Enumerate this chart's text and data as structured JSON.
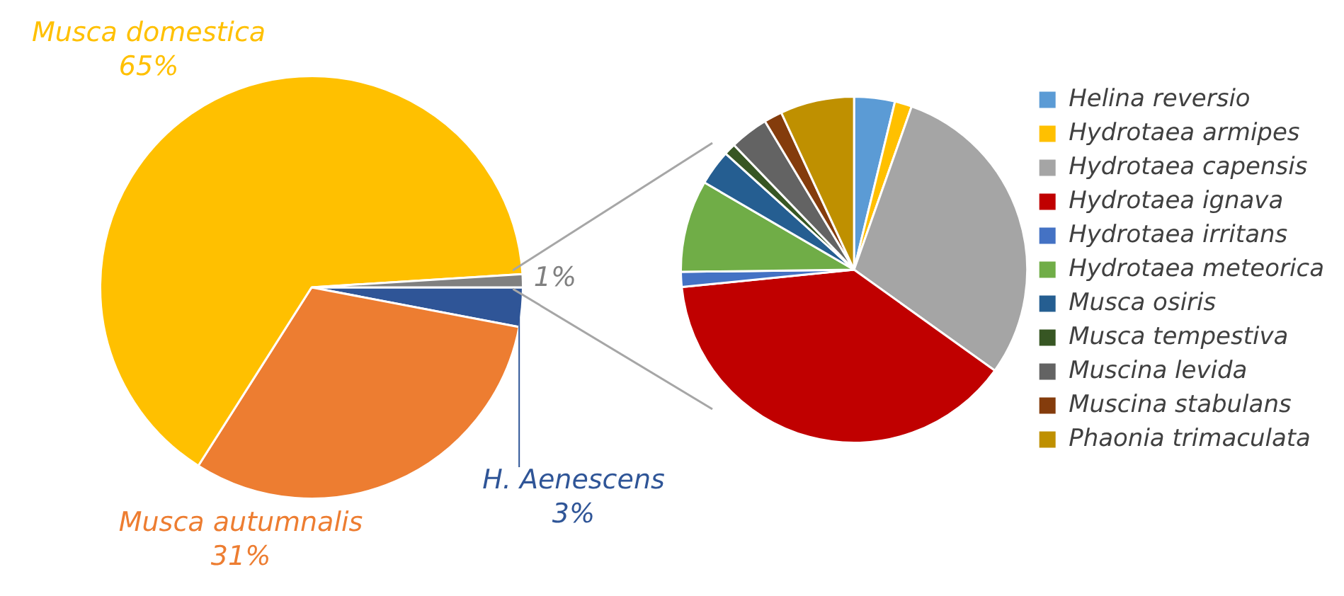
{
  "chart_data": [
    {
      "type": "pie",
      "categories": [
        "H. Aenescens",
        "Musca autumnalis",
        "Musca domestica",
        null
      ],
      "values": [
        3,
        31,
        65,
        1
      ],
      "colors": [
        "#2f5597",
        "#ed7d31",
        "#ffc000",
        "#808080"
      ],
      "value_labels": [
        "3%",
        "31%",
        "65%",
        "1%"
      ]
    },
    {
      "type": "pie",
      "categories": [
        "Helina reversio",
        "Hydrotaea armipes",
        "Hydrotaea capensis",
        "Hydrotaea ignava",
        "Hydrotaea irritans",
        "Hydrotaea meteorica",
        "Musca osiris",
        "Musca tempestiva",
        "Muscina levida",
        "Muscina stabulans",
        "Phaonia trimaculata"
      ],
      "values": [
        3.8,
        1.6,
        29.5,
        38.5,
        1.4,
        8.6,
        3.3,
        1.1,
        3.6,
        1.7,
        6.9
      ],
      "colors": [
        "#5b9bd5",
        "#ffc000",
        "#a5a5a5",
        "#c00000",
        "#4472c4",
        "#70ad47",
        "#255e91",
        "#375623",
        "#636363",
        "#843c0c",
        "#bf9000"
      ],
      "legend": "right"
    }
  ]
}
